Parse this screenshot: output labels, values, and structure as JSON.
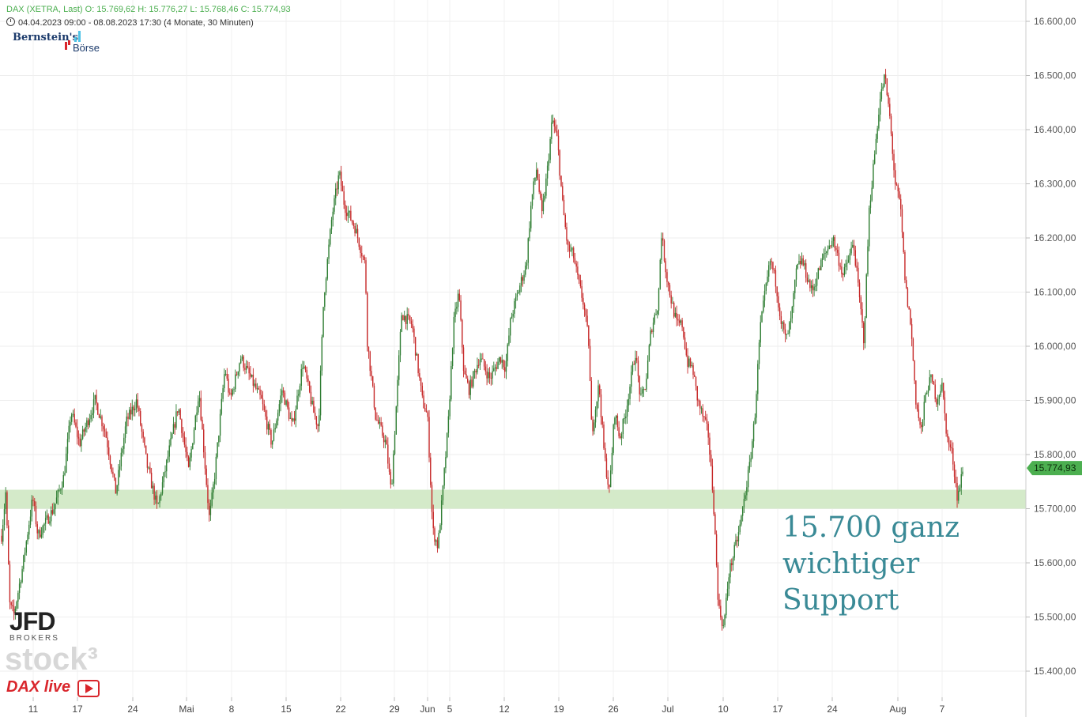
{
  "header": {
    "line1": "DAX (XETRA, Last)  O: 15.769,62  H: 15.776,27  L: 15.768,46  C: 15.774,93",
    "line2": "04.04.2023 09:00 - 08.08.2023 17:30   (4 Monate, 30 Minuten)"
  },
  "logos": {
    "bernstein_top": "Bernstein's",
    "bernstein_bottom": "Börse",
    "jfd": "JFD",
    "jfd_sub": "BROKERS",
    "stock3": "stock³",
    "daxlive": "DAX live"
  },
  "annotation": {
    "line1": "15.700 ganz",
    "line2": "wichtiger",
    "line3": "Support"
  },
  "chart_data": {
    "type": "candlestick",
    "instrument": "DAX (XETRA, Last)",
    "ylim": [
      15350,
      16650
    ],
    "y_ticks": [
      16600,
      16500,
      16400,
      16300,
      16200,
      16100,
      16000,
      15900,
      15800,
      15700,
      15600,
      15500,
      15400
    ],
    "y_tick_labels": [
      "16.600,00",
      "16.500,00",
      "16.400,00",
      "16.300,00",
      "16.200,00",
      "16.100,00",
      "16.000,00",
      "15.900,00",
      "15.800,00",
      "15.700,00",
      "15.600,00",
      "15.500,00",
      "15.400,00"
    ],
    "x_ticks": [
      "11",
      "17",
      "24",
      "Mai",
      "8",
      "15",
      "22",
      "29",
      "Jun",
      "5",
      "12",
      "19",
      "26",
      "Jul",
      "10",
      "17",
      "24",
      "Aug",
      "7"
    ],
    "support_zone": [
      15700,
      15735
    ],
    "last_price_label": "15.774,93",
    "last_price": 15774.93,
    "colors": {
      "up": "#2e7d32",
      "down": "#c62828",
      "zone": "#cfe8c3",
      "price_badge": "#4caf50"
    },
    "path_anchors": [
      [
        0,
        15650
      ],
      [
        0.004,
        15730
      ],
      [
        0.008,
        15520
      ],
      [
        0.012,
        15505
      ],
      [
        0.02,
        15590
      ],
      [
        0.03,
        15720
      ],
      [
        0.035,
        15650
      ],
      [
        0.05,
        15700
      ],
      [
        0.06,
        15760
      ],
      [
        0.067,
        15880
      ],
      [
        0.075,
        15820
      ],
      [
        0.09,
        15900
      ],
      [
        0.1,
        15840
      ],
      [
        0.11,
        15730
      ],
      [
        0.12,
        15860
      ],
      [
        0.13,
        15900
      ],
      [
        0.14,
        15780
      ],
      [
        0.15,
        15700
      ],
      [
        0.17,
        15890
      ],
      [
        0.18,
        15770
      ],
      [
        0.19,
        15920
      ],
      [
        0.2,
        15680
      ],
      [
        0.205,
        15760
      ],
      [
        0.215,
        15960
      ],
      [
        0.22,
        15900
      ],
      [
        0.23,
        15980
      ],
      [
        0.24,
        15940
      ],
      [
        0.25,
        15900
      ],
      [
        0.26,
        15820
      ],
      [
        0.27,
        15920
      ],
      [
        0.28,
        15850
      ],
      [
        0.29,
        15970
      ],
      [
        0.3,
        15880
      ],
      [
        0.305,
        15850
      ],
      [
        0.31,
        16090
      ],
      [
        0.318,
        16240
      ],
      [
        0.325,
        16320
      ],
      [
        0.33,
        16260
      ],
      [
        0.34,
        16220
      ],
      [
        0.35,
        16150
      ],
      [
        0.352,
        16010
      ],
      [
        0.36,
        15870
      ],
      [
        0.37,
        15820
      ],
      [
        0.375,
        15730
      ],
      [
        0.385,
        16060
      ],
      [
        0.395,
        16040
      ],
      [
        0.405,
        15900
      ],
      [
        0.41,
        15870
      ],
      [
        0.415,
        15660
      ],
      [
        0.42,
        15630
      ],
      [
        0.425,
        15740
      ],
      [
        0.43,
        15860
      ],
      [
        0.435,
        16040
      ],
      [
        0.44,
        16100
      ],
      [
        0.445,
        15950
      ],
      [
        0.45,
        15920
      ],
      [
        0.46,
        15980
      ],
      [
        0.47,
        15940
      ],
      [
        0.48,
        15980
      ],
      [
        0.485,
        15960
      ],
      [
        0.49,
        16050
      ],
      [
        0.5,
        16120
      ],
      [
        0.505,
        16150
      ],
      [
        0.51,
        16270
      ],
      [
        0.515,
        16330
      ],
      [
        0.52,
        16240
      ],
      [
        0.525,
        16320
      ],
      [
        0.53,
        16420
      ],
      [
        0.535,
        16380
      ],
      [
        0.54,
        16260
      ],
      [
        0.545,
        16180
      ],
      [
        0.55,
        16170
      ],
      [
        0.555,
        16120
      ],
      [
        0.56,
        16080
      ],
      [
        0.565,
        16010
      ],
      [
        0.568,
        15840
      ],
      [
        0.575,
        15930
      ],
      [
        0.58,
        15800
      ],
      [
        0.585,
        15730
      ],
      [
        0.59,
        15880
      ],
      [
        0.595,
        15830
      ],
      [
        0.6,
        15870
      ],
      [
        0.61,
        15990
      ],
      [
        0.615,
        15900
      ],
      [
        0.62,
        15930
      ],
      [
        0.625,
        16030
      ],
      [
        0.632,
        16080
      ],
      [
        0.635,
        16210
      ],
      [
        0.64,
        16130
      ],
      [
        0.645,
        16080
      ],
      [
        0.65,
        16040
      ],
      [
        0.655,
        16040
      ],
      [
        0.66,
        15970
      ],
      [
        0.665,
        15960
      ],
      [
        0.67,
        15900
      ],
      [
        0.68,
        15840
      ],
      [
        0.685,
        15720
      ],
      [
        0.69,
        15520
      ],
      [
        0.695,
        15480
      ],
      [
        0.7,
        15580
      ],
      [
        0.71,
        15660
      ],
      [
        0.715,
        15720
      ],
      [
        0.72,
        15780
      ],
      [
        0.725,
        15870
      ],
      [
        0.73,
        16030
      ],
      [
        0.735,
        16100
      ],
      [
        0.74,
        16160
      ],
      [
        0.745,
        16120
      ],
      [
        0.75,
        16050
      ],
      [
        0.755,
        16010
      ],
      [
        0.76,
        16050
      ],
      [
        0.765,
        16140
      ],
      [
        0.77,
        16160
      ],
      [
        0.78,
        16100
      ],
      [
        0.79,
        16160
      ],
      [
        0.8,
        16200
      ],
      [
        0.81,
        16130
      ],
      [
        0.82,
        16190
      ],
      [
        0.83,
        16010
      ],
      [
        0.835,
        16250
      ],
      [
        0.84,
        16350
      ],
      [
        0.845,
        16450
      ],
      [
        0.85,
        16500
      ],
      [
        0.855,
        16420
      ],
      [
        0.86,
        16300
      ],
      [
        0.865,
        16260
      ],
      [
        0.87,
        16110
      ],
      [
        0.875,
        16040
      ],
      [
        0.88,
        15900
      ],
      [
        0.885,
        15840
      ],
      [
        0.89,
        15920
      ],
      [
        0.895,
        15940
      ],
      [
        0.9,
        15900
      ],
      [
        0.905,
        15930
      ],
      [
        0.91,
        15830
      ],
      [
        0.915,
        15800
      ],
      [
        0.92,
        15720
      ],
      [
        0.925,
        15770
      ]
    ]
  }
}
